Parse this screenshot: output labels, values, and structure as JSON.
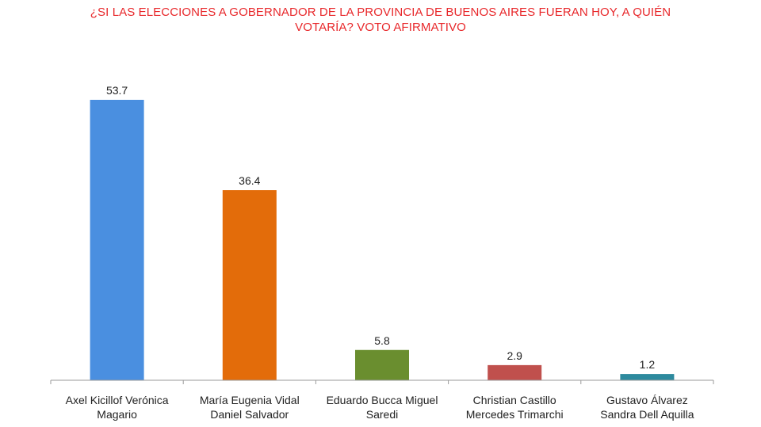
{
  "chart_data": {
    "type": "bar",
    "title_lines": [
      "¿SI LAS ELECCIONES A GOBERNADOR DE LA PROVINCIA DE BUENOS AIRES FUERAN HOY, A QUIÉN",
      "VOTARÍA? VOTO AFIRMATIVO"
    ],
    "categories": [
      [
        "Axel Kicillof Verónica",
        "Magario"
      ],
      [
        "María Eugenia Vidal",
        "Daniel Salvador"
      ],
      [
        "Eduardo Bucca Miguel",
        "Saredi"
      ],
      [
        "Christian Castillo",
        "Mercedes Trimarchi"
      ],
      [
        "Gustavo Álvarez",
        "Sandra Dell Aquilla"
      ]
    ],
    "values": [
      53.7,
      36.4,
      5.8,
      2.9,
      1.2
    ],
    "value_labels": [
      "53.7",
      "36.4",
      "5.8",
      "2.9",
      "1.2"
    ],
    "colors": [
      "#4a8fe0",
      "#e36c0a",
      "#6a8e2f",
      "#c0504d",
      "#2d8a9e"
    ],
    "ylim": [
      0,
      60
    ],
    "xlabel": "",
    "ylabel": ""
  }
}
